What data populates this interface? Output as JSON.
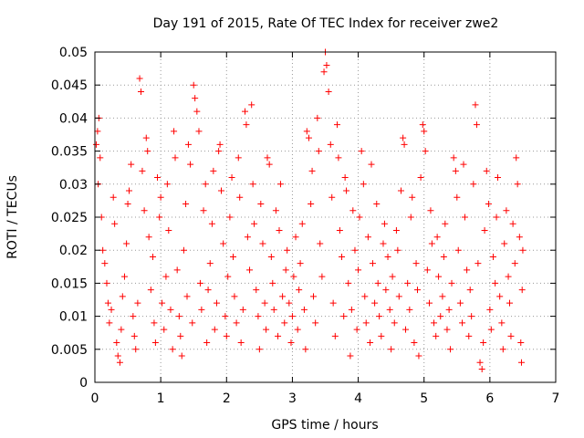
{
  "chart_data": {
    "type": "scatter",
    "title": "Day 191 of 2015, Rate Of TEC Index for receiver zwe2",
    "xlabel": "GPS time / hours",
    "ylabel": "ROTI / TECUs",
    "xlim": [
      0,
      7
    ],
    "ylim": [
      0,
      0.05
    ],
    "x_ticks": [
      "0",
      "1",
      "2",
      "3",
      "4",
      "5",
      "6",
      "7"
    ],
    "y_ticks": [
      "0",
      "0.005",
      "0.01",
      "0.015",
      "0.02",
      "0.025",
      "0.03",
      "0.035",
      "0.04",
      "0.045",
      "0.05"
    ],
    "grid": true,
    "marker": "+",
    "color": "#ff0000",
    "legend": "none",
    "series": [
      {
        "values_note": "dense point cloud from ~0 to ~6.5 h",
        "points": [
          [
            0.02,
            0.036
          ],
          [
            0.04,
            0.038
          ],
          [
            0.06,
            0.04
          ],
          [
            0.05,
            0.03
          ],
          [
            0.08,
            0.034
          ],
          [
            0.1,
            0.025
          ],
          [
            0.12,
            0.02
          ],
          [
            0.15,
            0.018
          ],
          [
            0.18,
            0.015
          ],
          [
            0.2,
            0.012
          ],
          [
            0.22,
            0.009
          ],
          [
            0.25,
            0.011
          ],
          [
            0.28,
            0.028
          ],
          [
            0.3,
            0.024
          ],
          [
            0.33,
            0.006
          ],
          [
            0.35,
            0.004
          ],
          [
            0.38,
            0.003
          ],
          [
            0.4,
            0.008
          ],
          [
            0.42,
            0.013
          ],
          [
            0.45,
            0.016
          ],
          [
            0.48,
            0.021
          ],
          [
            0.5,
            0.027
          ],
          [
            0.52,
            0.029
          ],
          [
            0.55,
            0.033
          ],
          [
            0.58,
            0.01
          ],
          [
            0.6,
            0.007
          ],
          [
            0.62,
            0.005
          ],
          [
            0.65,
            0.012
          ],
          [
            0.68,
            0.046
          ],
          [
            0.7,
            0.044
          ],
          [
            0.72,
            0.032
          ],
          [
            0.75,
            0.026
          ],
          [
            0.78,
            0.037
          ],
          [
            0.8,
            0.035
          ],
          [
            0.82,
            0.022
          ],
          [
            0.85,
            0.014
          ],
          [
            0.88,
            0.019
          ],
          [
            0.9,
            0.009
          ],
          [
            0.92,
            0.006
          ],
          [
            0.95,
            0.031
          ],
          [
            0.98,
            0.025
          ],
          [
            1.0,
            0.028
          ],
          [
            1.02,
            0.012
          ],
          [
            1.05,
            0.008
          ],
          [
            1.08,
            0.016
          ],
          [
            1.1,
            0.03
          ],
          [
            1.12,
            0.023
          ],
          [
            1.15,
            0.011
          ],
          [
            1.18,
            0.005
          ],
          [
            1.2,
            0.038
          ],
          [
            1.22,
            0.034
          ],
          [
            1.25,
            0.017
          ],
          [
            1.28,
            0.01
          ],
          [
            1.3,
            0.007
          ],
          [
            1.32,
            0.004
          ],
          [
            1.35,
            0.02
          ],
          [
            1.38,
            0.027
          ],
          [
            1.4,
            0.013
          ],
          [
            1.42,
            0.036
          ],
          [
            1.45,
            0.033
          ],
          [
            1.48,
            0.009
          ],
          [
            1.5,
            0.045
          ],
          [
            1.52,
            0.043
          ],
          [
            1.55,
            0.041
          ],
          [
            1.58,
            0.038
          ],
          [
            1.6,
            0.015
          ],
          [
            1.62,
            0.011
          ],
          [
            1.65,
            0.026
          ],
          [
            1.68,
            0.03
          ],
          [
            1.7,
            0.006
          ],
          [
            1.72,
            0.014
          ],
          [
            1.75,
            0.018
          ],
          [
            1.78,
            0.024
          ],
          [
            1.8,
            0.032
          ],
          [
            1.82,
            0.008
          ],
          [
            1.85,
            0.012
          ],
          [
            1.88,
            0.035
          ],
          [
            1.9,
            0.036
          ],
          [
            1.92,
            0.029
          ],
          [
            1.95,
            0.021
          ],
          [
            1.98,
            0.01
          ],
          [
            2.0,
            0.007
          ],
          [
            2.02,
            0.016
          ],
          [
            2.05,
            0.025
          ],
          [
            2.08,
            0.031
          ],
          [
            2.1,
            0.019
          ],
          [
            2.12,
            0.013
          ],
          [
            2.15,
            0.009
          ],
          [
            2.18,
            0.034
          ],
          [
            2.2,
            0.028
          ],
          [
            2.22,
            0.006
          ],
          [
            2.25,
            0.011
          ],
          [
            2.28,
            0.041
          ],
          [
            2.3,
            0.039
          ],
          [
            2.32,
            0.022
          ],
          [
            2.35,
            0.017
          ],
          [
            2.38,
            0.042
          ],
          [
            2.4,
            0.03
          ],
          [
            2.42,
            0.024
          ],
          [
            2.45,
            0.014
          ],
          [
            2.48,
            0.01
          ],
          [
            2.5,
            0.005
          ],
          [
            2.52,
            0.027
          ],
          [
            2.55,
            0.021
          ],
          [
            2.58,
            0.012
          ],
          [
            2.6,
            0.008
          ],
          [
            2.62,
            0.034
          ],
          [
            2.65,
            0.033
          ],
          [
            2.68,
            0.019
          ],
          [
            2.7,
            0.015
          ],
          [
            2.72,
            0.011
          ],
          [
            2.75,
            0.026
          ],
          [
            2.78,
            0.007
          ],
          [
            2.8,
            0.023
          ],
          [
            2.82,
            0.03
          ],
          [
            2.85,
            0.013
          ],
          [
            2.88,
            0.009
          ],
          [
            2.9,
            0.017
          ],
          [
            2.92,
            0.02
          ],
          [
            2.95,
            0.012
          ],
          [
            2.98,
            0.006
          ],
          [
            3.0,
            0.01
          ],
          [
            3.02,
            0.016
          ],
          [
            3.05,
            0.022
          ],
          [
            3.08,
            0.008
          ],
          [
            3.1,
            0.014
          ],
          [
            3.12,
            0.018
          ],
          [
            3.15,
            0.024
          ],
          [
            3.18,
            0.011
          ],
          [
            3.2,
            0.005
          ],
          [
            3.22,
            0.038
          ],
          [
            3.25,
            0.037
          ],
          [
            3.28,
            0.027
          ],
          [
            3.3,
            0.032
          ],
          [
            3.32,
            0.013
          ],
          [
            3.35,
            0.009
          ],
          [
            3.38,
            0.04
          ],
          [
            3.4,
            0.035
          ],
          [
            3.42,
            0.021
          ],
          [
            3.45,
            0.016
          ],
          [
            3.48,
            0.047
          ],
          [
            3.5,
            0.05
          ],
          [
            3.52,
            0.048
          ],
          [
            3.55,
            0.044
          ],
          [
            3.58,
            0.036
          ],
          [
            3.6,
            0.028
          ],
          [
            3.62,
            0.012
          ],
          [
            3.65,
            0.007
          ],
          [
            3.68,
            0.039
          ],
          [
            3.7,
            0.034
          ],
          [
            3.72,
            0.023
          ],
          [
            3.75,
            0.019
          ],
          [
            3.78,
            0.01
          ],
          [
            3.8,
            0.031
          ],
          [
            3.82,
            0.029
          ],
          [
            3.85,
            0.015
          ],
          [
            3.88,
            0.004
          ],
          [
            3.9,
            0.011
          ],
          [
            3.92,
            0.026
          ],
          [
            3.95,
            0.02
          ],
          [
            3.98,
            0.008
          ],
          [
            4.0,
            0.017
          ],
          [
            4.02,
            0.025
          ],
          [
            4.05,
            0.035
          ],
          [
            4.08,
            0.03
          ],
          [
            4.1,
            0.013
          ],
          [
            4.12,
            0.009
          ],
          [
            4.15,
            0.022
          ],
          [
            4.18,
            0.006
          ],
          [
            4.2,
            0.033
          ],
          [
            4.22,
            0.018
          ],
          [
            4.25,
            0.012
          ],
          [
            4.28,
            0.027
          ],
          [
            4.3,
            0.015
          ],
          [
            4.32,
            0.01
          ],
          [
            4.35,
            0.007
          ],
          [
            4.38,
            0.021
          ],
          [
            4.4,
            0.024
          ],
          [
            4.42,
            0.014
          ],
          [
            4.45,
            0.019
          ],
          [
            4.48,
            0.011
          ],
          [
            4.5,
            0.005
          ],
          [
            4.52,
            0.016
          ],
          [
            4.55,
            0.009
          ],
          [
            4.58,
            0.023
          ],
          [
            4.6,
            0.02
          ],
          [
            4.62,
            0.013
          ],
          [
            4.65,
            0.029
          ],
          [
            4.68,
            0.037
          ],
          [
            4.7,
            0.036
          ],
          [
            4.72,
            0.008
          ],
          [
            4.75,
            0.015
          ],
          [
            4.78,
            0.011
          ],
          [
            4.8,
            0.025
          ],
          [
            4.82,
            0.028
          ],
          [
            4.85,
            0.006
          ],
          [
            4.88,
            0.018
          ],
          [
            4.9,
            0.014
          ],
          [
            4.92,
            0.004
          ],
          [
            4.95,
            0.031
          ],
          [
            4.98,
            0.039
          ],
          [
            5.0,
            0.038
          ],
          [
            5.02,
            0.035
          ],
          [
            5.05,
            0.017
          ],
          [
            5.08,
            0.012
          ],
          [
            5.1,
            0.026
          ],
          [
            5.12,
            0.021
          ],
          [
            5.15,
            0.009
          ],
          [
            5.18,
            0.007
          ],
          [
            5.2,
            0.022
          ],
          [
            5.22,
            0.016
          ],
          [
            5.25,
            0.01
          ],
          [
            5.28,
            0.013
          ],
          [
            5.3,
            0.019
          ],
          [
            5.32,
            0.024
          ],
          [
            5.35,
            0.008
          ],
          [
            5.38,
            0.011
          ],
          [
            5.4,
            0.005
          ],
          [
            5.42,
            0.015
          ],
          [
            5.45,
            0.034
          ],
          [
            5.48,
            0.032
          ],
          [
            5.5,
            0.028
          ],
          [
            5.52,
            0.02
          ],
          [
            5.55,
            0.012
          ],
          [
            5.58,
            0.009
          ],
          [
            5.6,
            0.033
          ],
          [
            5.62,
            0.025
          ],
          [
            5.65,
            0.017
          ],
          [
            5.68,
            0.007
          ],
          [
            5.7,
            0.014
          ],
          [
            5.72,
            0.01
          ],
          [
            5.75,
            0.03
          ],
          [
            5.78,
            0.042
          ],
          [
            5.8,
            0.039
          ],
          [
            5.82,
            0.018
          ],
          [
            5.85,
            0.003
          ],
          [
            5.88,
            0.002
          ],
          [
            5.9,
            0.006
          ],
          [
            5.92,
            0.023
          ],
          [
            5.95,
            0.032
          ],
          [
            5.98,
            0.027
          ],
          [
            6.0,
            0.011
          ],
          [
            6.02,
            0.008
          ],
          [
            6.05,
            0.019
          ],
          [
            6.08,
            0.015
          ],
          [
            6.1,
            0.025
          ],
          [
            6.12,
            0.031
          ],
          [
            6.15,
            0.013
          ],
          [
            6.18,
            0.009
          ],
          [
            6.2,
            0.005
          ],
          [
            6.22,
            0.021
          ],
          [
            6.25,
            0.026
          ],
          [
            6.28,
            0.016
          ],
          [
            6.3,
            0.012
          ],
          [
            6.32,
            0.007
          ],
          [
            6.35,
            0.024
          ],
          [
            6.38,
            0.018
          ],
          [
            6.4,
            0.034
          ],
          [
            6.42,
            0.03
          ],
          [
            6.45,
            0.022
          ],
          [
            6.47,
            0.006
          ],
          [
            6.48,
            0.003
          ],
          [
            6.49,
            0.014
          ],
          [
            6.5,
            0.02
          ]
        ]
      }
    ]
  }
}
